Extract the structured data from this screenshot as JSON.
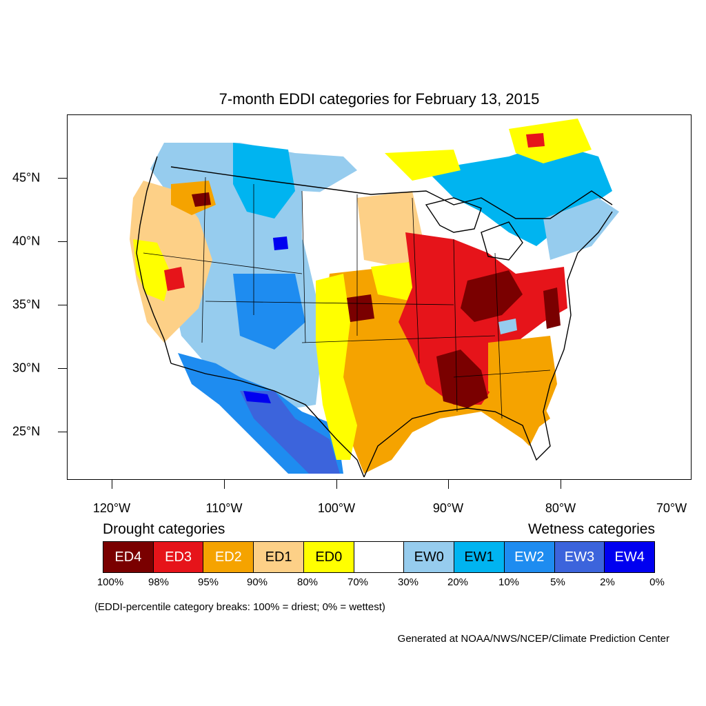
{
  "title": "7-month EDDI categories for February 13, 2015",
  "x_axis": {
    "ticks": [
      "120°W",
      "110°W",
      "100°W",
      "90°W",
      "80°W",
      "70°W"
    ]
  },
  "y_axis": {
    "ticks": [
      "45°N",
      "40°N",
      "35°N",
      "30°N",
      "25°N"
    ]
  },
  "legend": {
    "drought_heading": "Drought categories",
    "wetness_heading": "Wetness categories",
    "categories": [
      {
        "label": "ED4",
        "color": "#7a0000",
        "text_color": "#ffffff"
      },
      {
        "label": "ED3",
        "color": "#e6141a",
        "text_color": "#ffffff"
      },
      {
        "label": "ED2",
        "color": "#f5a300",
        "text_color": "#ffffff"
      },
      {
        "label": "ED1",
        "color": "#fdd087",
        "text_color": "#000000"
      },
      {
        "label": "ED0",
        "color": "#ffff00",
        "text_color": "#000000"
      },
      {
        "label": "",
        "color": "#ffffff",
        "text_color": "#000000"
      },
      {
        "label": "EW0",
        "color": "#96ccee",
        "text_color": "#000000"
      },
      {
        "label": "EW1",
        "color": "#00b4f0",
        "text_color": "#000000"
      },
      {
        "label": "EW2",
        "color": "#1e8cf0",
        "text_color": "#ffffff"
      },
      {
        "label": "EW3",
        "color": "#3c64dc",
        "text_color": "#ffffff"
      },
      {
        "label": "EW4",
        "color": "#0000f0",
        "text_color": "#ffffff"
      }
    ],
    "percent_breaks": [
      "100%",
      "98%",
      "95%",
      "90%",
      "80%",
      "70%",
      "30%",
      "20%",
      "10%",
      "5%",
      "2%",
      "0%"
    ]
  },
  "breaks_note": "(EDDI-percentile category breaks: 100% = driest; 0% = wettest)",
  "credit": "Generated at NOAA/NWS/NCEP/Climate Prediction Center"
}
